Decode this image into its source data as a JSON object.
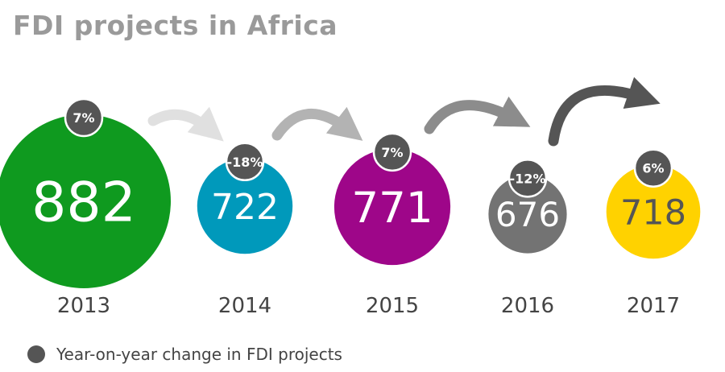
{
  "chart_data": {
    "type": "bubble",
    "title": "FDI projects in Africa",
    "categories": [
      "2013",
      "2014",
      "2015",
      "2016",
      "2017"
    ],
    "values": [
      882,
      722,
      771,
      676,
      718
    ],
    "changes": [
      "7%",
      "-18%",
      "7%",
      "-12%",
      "6%"
    ],
    "legend": {
      "label": "Year-on-year change in FDI projects",
      "position": "bottom-left"
    },
    "colors": [
      "#0f9a1f",
      "#0099bb",
      "#9e0689",
      "#737373",
      "#ffd200"
    ],
    "value_text_colors": [
      "#ffffff",
      "#ffffff",
      "#ffffff",
      "#ffffff",
      "#555555"
    ],
    "badge_color": "#555555",
    "arrow_colors": [
      "#e0e0e0",
      "#b3b3b3",
      "#8c8c8c",
      "#555555"
    ],
    "grid": false
  }
}
